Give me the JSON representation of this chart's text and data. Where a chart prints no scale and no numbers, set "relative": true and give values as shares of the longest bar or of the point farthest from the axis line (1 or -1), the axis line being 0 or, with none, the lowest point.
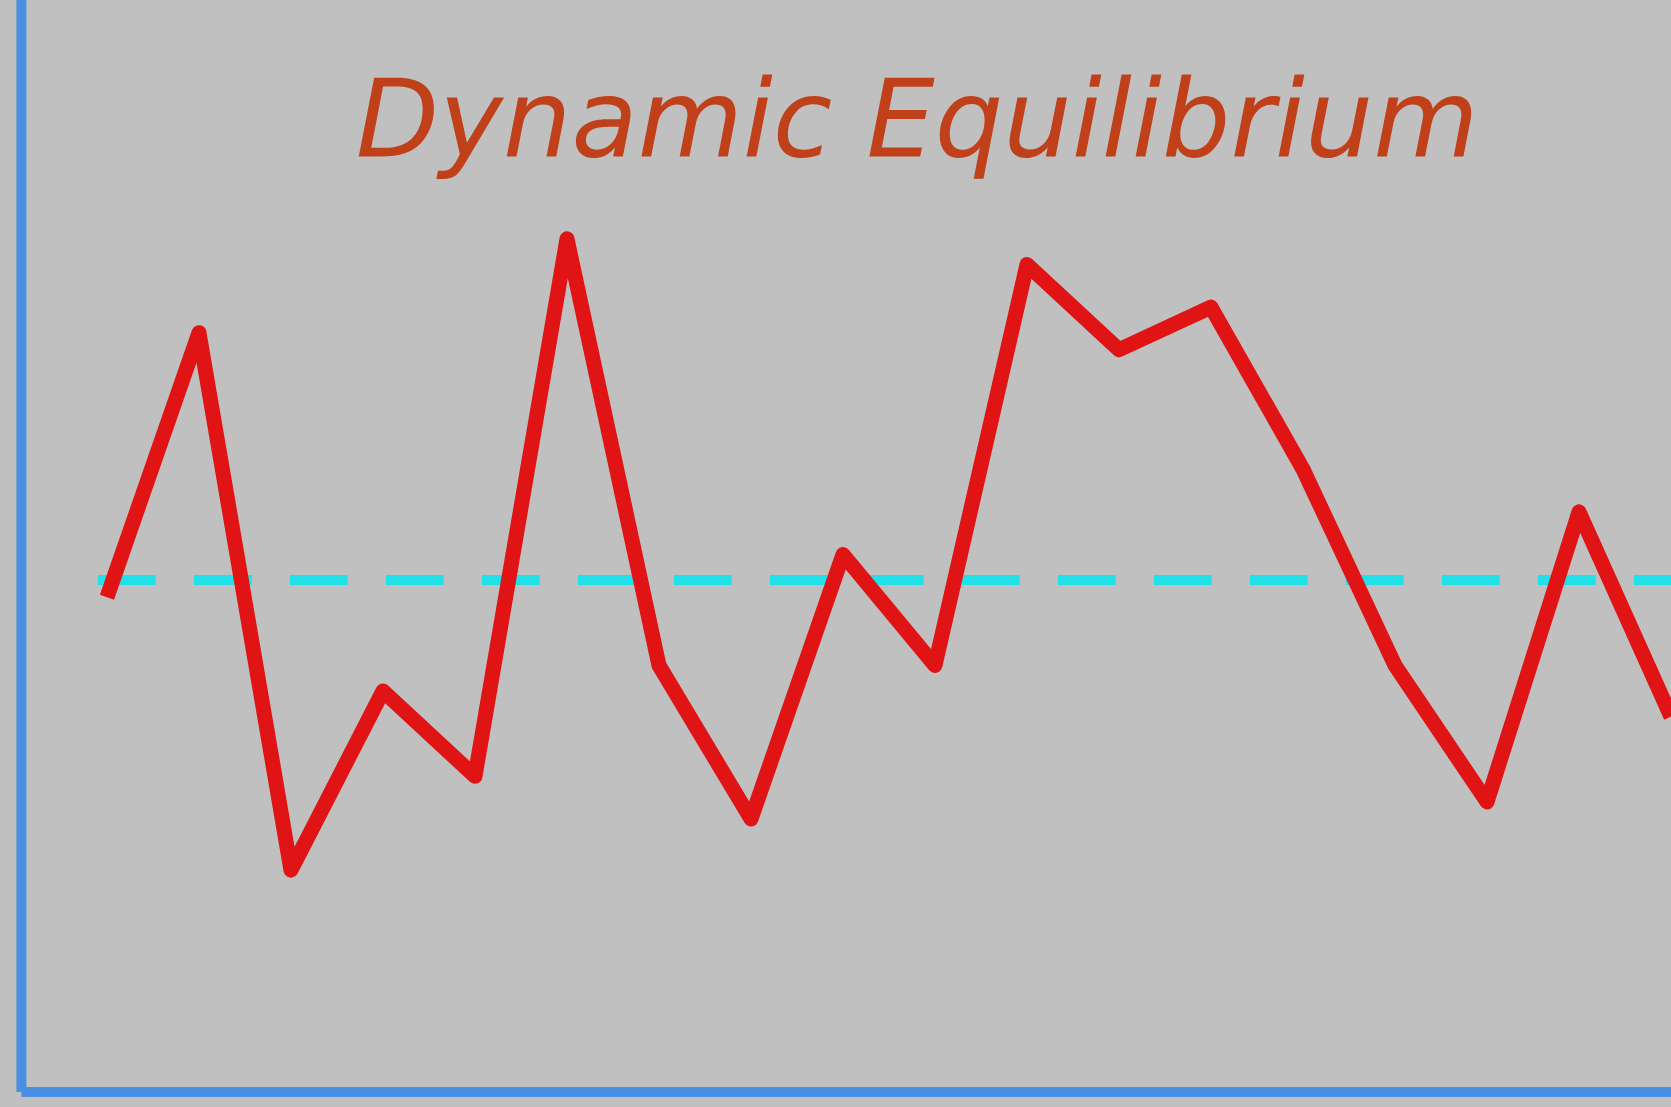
{
  "chart_data": {
    "type": "line",
    "title": "Dynamic Equilibrium",
    "relative": true,
    "categories": [
      null,
      null,
      null,
      null,
      null,
      null,
      null,
      null,
      null,
      null,
      null,
      null,
      null,
      null,
      null,
      null,
      null,
      null
    ],
    "series": [
      {
        "color": "#e01414",
        "values": [
          0.58,
          0.89,
          0.26,
          0.47,
          0.37,
          1.0,
          0.5,
          0.32,
          0.63,
          0.5,
          0.97,
          0.87,
          0.92,
          0.73,
          0.5,
          0.34,
          0.68,
          0.44
        ]
      }
    ],
    "ref_lines": [
      {
        "axis": "y",
        "value": 0.6,
        "color": "#22e0e8",
        "line_style": "dashed"
      }
    ],
    "marker": "none",
    "line_style": "solid"
  }
}
